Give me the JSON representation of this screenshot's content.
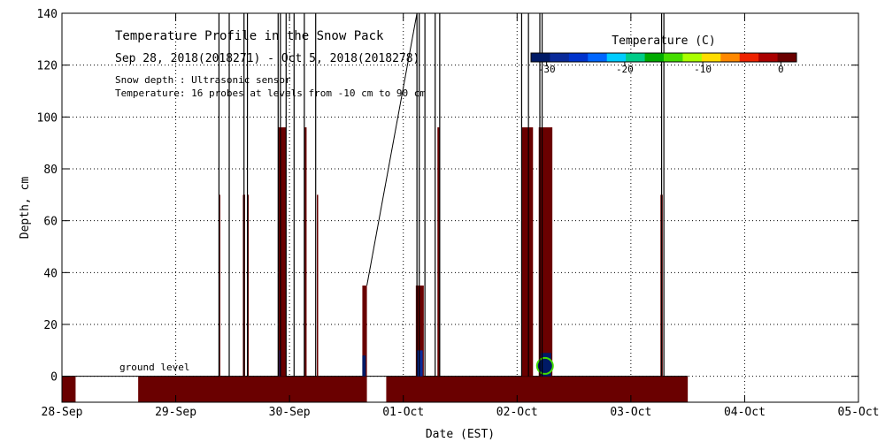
{
  "chart_data": {
    "type": "heatmap",
    "title": "Temperature Profile in the Snow Pack",
    "subtitle": "Sep 28, 2018(2018271) - Oct 5, 2018(2018278)",
    "notes": [
      "Snow depth : Ultrasonic sensor",
      "Temperature: 16 probes at levels from -10 cm to 90 cm"
    ],
    "annotation": "ground level",
    "xlabel": "Date (EST)",
    "ylabel": "Depth, cm",
    "xlim": [
      "2018-09-28",
      "2018-10-05"
    ],
    "ylim": [
      -10,
      140
    ],
    "x_ticks": [
      "28-Sep",
      "29-Sep",
      "30-Sep",
      "01-Oct",
      "02-Oct",
      "03-Oct",
      "04-Oct",
      "05-Oct"
    ],
    "y_ticks": [
      0,
      20,
      40,
      60,
      80,
      100,
      120,
      140
    ],
    "grid": true,
    "colorbar": {
      "title": "Temperature (C)",
      "ticks": [
        -30,
        -20,
        -10,
        0
      ],
      "colors": [
        "#001a66",
        "#0a2a99",
        "#0033cc",
        "#0066ff",
        "#00ccff",
        "#00cc88",
        "#00aa00",
        "#44dd00",
        "#aaff00",
        "#ffdd00",
        "#ff8800",
        "#ee2200",
        "#aa0000",
        "#6a0000"
      ],
      "placement": "top-right"
    },
    "ground_band_color": "#6a0000",
    "ground_band_segments": [
      [
        0.0,
        0.12
      ],
      [
        0.67,
        2.68
      ],
      [
        2.85,
        5.5
      ]
    ],
    "snow_depth_spikes": [
      {
        "x": 1.38,
        "y": 140
      },
      {
        "x": 1.47,
        "y": 140
      },
      {
        "x": 1.6,
        "y": 140
      },
      {
        "x": 1.63,
        "y": 140
      },
      {
        "x": 1.9,
        "y": 140
      },
      {
        "x": 1.92,
        "y": 140
      },
      {
        "x": 1.97,
        "y": 140
      },
      {
        "x": 2.04,
        "y": 140
      },
      {
        "x": 2.13,
        "y": 140
      },
      {
        "x": 2.23,
        "y": 140
      },
      {
        "x": 3.12,
        "y": 140
      },
      {
        "x": 3.14,
        "y": 140
      },
      {
        "x": 3.19,
        "y": 140
      },
      {
        "x": 3.28,
        "y": 140
      },
      {
        "x": 3.32,
        "y": 140
      },
      {
        "x": 4.04,
        "y": 140
      },
      {
        "x": 4.1,
        "y": 140
      },
      {
        "x": 4.2,
        "y": 140
      },
      {
        "x": 4.22,
        "y": 140
      },
      {
        "x": 5.27,
        "y": 140
      },
      {
        "x": 5.29,
        "y": 140
      }
    ],
    "profile_columns": [
      {
        "x0": 1.38,
        "x1": 1.39,
        "top": 70,
        "color": "#6a0000"
      },
      {
        "x0": 1.59,
        "x1": 1.61,
        "top": 70,
        "color": "#6a0000"
      },
      {
        "x0": 1.63,
        "x1": 1.64,
        "top": 70,
        "color": "#6a0000"
      },
      {
        "x0": 1.9,
        "x1": 1.97,
        "top": 96,
        "color": "#6a0000"
      },
      {
        "x0": 1.91,
        "x1": 1.92,
        "top": 10,
        "color": "#0a2a99"
      },
      {
        "x0": 2.13,
        "x1": 2.15,
        "top": 96,
        "color": "#6a0000"
      },
      {
        "x0": 2.24,
        "x1": 2.25,
        "top": 70,
        "color": "#6a0000"
      },
      {
        "x0": 2.64,
        "x1": 2.68,
        "top": 35,
        "color": "#6a0000"
      },
      {
        "x0": 2.64,
        "x1": 2.67,
        "top": 8,
        "color": "#001a66"
      },
      {
        "x0": 3.11,
        "x1": 3.18,
        "top": 35,
        "color": "#6a0000"
      },
      {
        "x0": 3.12,
        "x1": 3.17,
        "top": 10,
        "color": "#0a2a99"
      },
      {
        "x0": 3.3,
        "x1": 3.32,
        "top": 96,
        "color": "#6a0000"
      },
      {
        "x0": 4.04,
        "x1": 4.14,
        "top": 96,
        "color": "#6a0000"
      },
      {
        "x0": 4.19,
        "x1": 4.31,
        "top": 96,
        "color": "#6a0000"
      },
      {
        "x0": 4.21,
        "x1": 4.3,
        "top": 9,
        "color": "#001a66"
      },
      {
        "x0": 5.26,
        "x1": 5.28,
        "top": 70,
        "color": "#6a0000"
      }
    ]
  }
}
